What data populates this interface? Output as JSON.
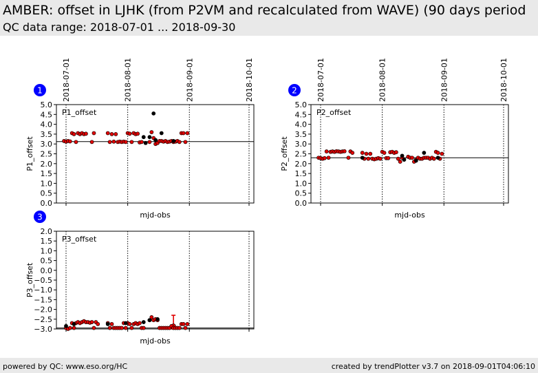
{
  "header": {
    "title": "AMBER: offset in LJHK (from P2VM and recalculated from WAVE) (90 days period",
    "subtitle": "QC data range: 2018-07-01 ... 2018-09-30"
  },
  "footer": {
    "left": "powered by QC: www.eso.org/HC",
    "right": "created by trendPlotter v3.7 on 2018-09-01T04:06:10"
  },
  "colors": {
    "marker_red": "#e00000",
    "marker_black": "#000000",
    "badge_blue": "#0000ff",
    "header_bg": "#e9e9e9"
  },
  "chart_data": [
    {
      "type": "scatter",
      "badge": "1",
      "panel_label": "P1_offset",
      "xlabel": "mjd-obs",
      "ylabel": "P1_offset",
      "date_ticks": [
        "2018-07-01",
        "2018-08-01",
        "2018-09-01",
        "2018-10-01"
      ],
      "ylim": [
        0.0,
        5.0
      ],
      "yticks": [
        "0.0",
        "0.5",
        "1.0",
        "1.5",
        "2.0",
        "2.5",
        "3.0",
        "3.5",
        "4.0",
        "4.5",
        "5.0"
      ],
      "reference_line": 3.12,
      "series": [
        {
          "color": "red",
          "points": [
            [
              "2018-06-30",
              3.15
            ],
            [
              "2018-07-01",
              3.12
            ],
            [
              "2018-07-02",
              3.15
            ],
            [
              "2018-07-03",
              3.13
            ],
            [
              "2018-07-04",
              3.55
            ],
            [
              "2018-07-05",
              3.5
            ],
            [
              "2018-07-06",
              3.1
            ],
            [
              "2018-07-07",
              3.55
            ],
            [
              "2018-07-08",
              3.5
            ],
            [
              "2018-07-09",
              3.55
            ],
            [
              "2018-07-10",
              3.5
            ],
            [
              "2018-07-11",
              3.52
            ],
            [
              "2018-07-14",
              3.1
            ],
            [
              "2018-07-15",
              3.55
            ],
            [
              "2018-07-22",
              3.55
            ],
            [
              "2018-07-23",
              3.1
            ],
            [
              "2018-07-24",
              3.5
            ],
            [
              "2018-07-25",
              3.12
            ],
            [
              "2018-07-26",
              3.5
            ],
            [
              "2018-07-27",
              3.1
            ],
            [
              "2018-07-28",
              3.12
            ],
            [
              "2018-07-29",
              3.1
            ],
            [
              "2018-07-30",
              3.12
            ],
            [
              "2018-07-31",
              3.1
            ],
            [
              "2018-08-01",
              3.55
            ],
            [
              "2018-08-02",
              3.52
            ],
            [
              "2018-08-03",
              3.1
            ],
            [
              "2018-08-04",
              3.55
            ],
            [
              "2018-08-05",
              3.5
            ],
            [
              "2018-08-06",
              3.52
            ],
            [
              "2018-08-07",
              3.08
            ],
            [
              "2018-08-08",
              3.1
            ],
            [
              "2018-08-12",
              3.1
            ],
            [
              "2018-08-13",
              3.6
            ],
            [
              "2018-08-14",
              3.3
            ],
            [
              "2018-08-15",
              3.0
            ],
            [
              "2018-08-16",
              3.05
            ],
            [
              "2018-08-17",
              3.15
            ],
            [
              "2018-08-18",
              3.15
            ],
            [
              "2018-08-19",
              3.12
            ],
            [
              "2018-08-20",
              3.15
            ],
            [
              "2018-08-21",
              3.1
            ],
            [
              "2018-08-22",
              3.12
            ],
            [
              "2018-08-23",
              3.15
            ],
            [
              "2018-08-24",
              3.1
            ],
            [
              "2018-08-25",
              3.12
            ],
            [
              "2018-08-26",
              3.15
            ],
            [
              "2018-08-27",
              3.1
            ],
            [
              "2018-08-28",
              3.55
            ],
            [
              "2018-08-29",
              3.55
            ],
            [
              "2018-08-30",
              3.1
            ],
            [
              "2018-08-31",
              3.55
            ]
          ]
        },
        {
          "color": "black",
          "points": [
            [
              "2018-08-09",
              3.35
            ],
            [
              "2018-08-10",
              3.05
            ],
            [
              "2018-08-12",
              3.35
            ],
            [
              "2018-08-14",
              4.55
            ],
            [
              "2018-08-15",
              3.2
            ],
            [
              "2018-08-18",
              3.55
            ],
            [
              "2018-08-24",
              3.15
            ]
          ]
        }
      ]
    },
    {
      "type": "scatter",
      "badge": "2",
      "panel_label": "P2_offset",
      "xlabel": "mjd-obs",
      "ylabel": "P2_offset",
      "date_ticks": [
        "2018-07-01",
        "2018-08-01",
        "2018-09-01",
        "2018-10-01"
      ],
      "ylim": [
        0.0,
        5.0
      ],
      "yticks": [
        "0.0",
        "0.5",
        "1.0",
        "1.5",
        "2.0",
        "2.5",
        "3.0",
        "3.5",
        "4.0",
        "4.5",
        "5.0"
      ],
      "reference_line": 2.3,
      "series": [
        {
          "color": "red",
          "points": [
            [
              "2018-06-30",
              2.3
            ],
            [
              "2018-07-01",
              2.28
            ],
            [
              "2018-07-02",
              2.25
            ],
            [
              "2018-07-03",
              2.28
            ],
            [
              "2018-07-04",
              2.62
            ],
            [
              "2018-07-05",
              2.3
            ],
            [
              "2018-07-06",
              2.6
            ],
            [
              "2018-07-07",
              2.62
            ],
            [
              "2018-07-08",
              2.6
            ],
            [
              "2018-07-09",
              2.63
            ],
            [
              "2018-07-10",
              2.62
            ],
            [
              "2018-07-11",
              2.6
            ],
            [
              "2018-07-12",
              2.62
            ],
            [
              "2018-07-13",
              2.63
            ],
            [
              "2018-07-15",
              2.3
            ],
            [
              "2018-07-16",
              2.62
            ],
            [
              "2018-07-17",
              2.55
            ],
            [
              "2018-07-22",
              2.55
            ],
            [
              "2018-07-23",
              2.25
            ],
            [
              "2018-07-24",
              2.5
            ],
            [
              "2018-07-25",
              2.25
            ],
            [
              "2018-07-26",
              2.5
            ],
            [
              "2018-07-27",
              2.25
            ],
            [
              "2018-07-28",
              2.22
            ],
            [
              "2018-07-29",
              2.25
            ],
            [
              "2018-07-30",
              2.28
            ],
            [
              "2018-07-31",
              2.25
            ],
            [
              "2018-08-01",
              2.6
            ],
            [
              "2018-08-02",
              2.55
            ],
            [
              "2018-08-03",
              2.28
            ],
            [
              "2018-08-04",
              2.28
            ],
            [
              "2018-08-05",
              2.58
            ],
            [
              "2018-08-06",
              2.6
            ],
            [
              "2018-08-07",
              2.55
            ],
            [
              "2018-08-08",
              2.58
            ],
            [
              "2018-08-09",
              2.25
            ],
            [
              "2018-08-10",
              2.1
            ],
            [
              "2018-08-11",
              2.3
            ],
            [
              "2018-08-14",
              2.35
            ],
            [
              "2018-08-15",
              2.3
            ],
            [
              "2018-08-16",
              2.3
            ],
            [
              "2018-08-17",
              2.1
            ],
            [
              "2018-08-18",
              2.2
            ],
            [
              "2018-08-19",
              2.3
            ],
            [
              "2018-08-20",
              2.25
            ],
            [
              "2018-08-21",
              2.25
            ],
            [
              "2018-08-22",
              2.3
            ],
            [
              "2018-08-23",
              2.3
            ],
            [
              "2018-08-24",
              2.3
            ],
            [
              "2018-08-25",
              2.25
            ],
            [
              "2018-08-26",
              2.3
            ],
            [
              "2018-08-27",
              2.25
            ],
            [
              "2018-08-28",
              2.6
            ],
            [
              "2018-08-29",
              2.55
            ],
            [
              "2018-08-30",
              2.25
            ],
            [
              "2018-08-31",
              2.5
            ]
          ]
        },
        {
          "color": "black",
          "points": [
            [
              "2018-07-22",
              2.3
            ],
            [
              "2018-08-11",
              2.4
            ],
            [
              "2018-08-12",
              2.2
            ],
            [
              "2018-08-18",
              2.15
            ],
            [
              "2018-08-22",
              2.55
            ],
            [
              "2018-08-29",
              2.3
            ]
          ]
        }
      ]
    },
    {
      "type": "scatter",
      "badge": "3",
      "panel_label": "P3_offset",
      "xlabel": "mjd-obs",
      "ylabel": "P3_offset",
      "date_ticks": [
        "2018-07-01",
        "2018-08-01",
        "2018-09-01",
        "2018-10-01"
      ],
      "ylim": [
        -3.0,
        2.0
      ],
      "yticks": [
        "2.0",
        "1.5",
        "1.0",
        "0.5",
        "0.0",
        "−0.5",
        "−1.0",
        "−1.5",
        "−2.0",
        "−2.5",
        "−3.0"
      ],
      "reference_line": -2.95,
      "series": [
        {
          "color": "red",
          "points": [
            [
              "2018-07-01",
              -2.95
            ],
            [
              "2018-07-02",
              -3.0
            ],
            [
              "2018-07-03",
              -2.95
            ],
            [
              "2018-07-04",
              -2.7
            ],
            [
              "2018-07-05",
              -2.95
            ],
            [
              "2018-07-06",
              -2.7
            ],
            [
              "2018-07-07",
              -2.65
            ],
            [
              "2018-07-08",
              -2.7
            ],
            [
              "2018-07-09",
              -2.65
            ],
            [
              "2018-07-10",
              -2.6
            ],
            [
              "2018-07-11",
              -2.65
            ],
            [
              "2018-07-12",
              -2.65
            ],
            [
              "2018-07-13",
              -2.68
            ],
            [
              "2018-07-14",
              -2.65
            ],
            [
              "2018-07-15",
              -2.95
            ],
            [
              "2018-07-16",
              -2.65
            ],
            [
              "2018-07-17",
              -2.75
            ],
            [
              "2018-07-22",
              -2.7
            ],
            [
              "2018-07-23",
              -2.95
            ],
            [
              "2018-07-24",
              -2.75
            ],
            [
              "2018-07-25",
              -2.95
            ],
            [
              "2018-07-26",
              -2.95
            ],
            [
              "2018-07-27",
              -2.95
            ],
            [
              "2018-07-28",
              -2.95
            ],
            [
              "2018-07-29",
              -2.95
            ],
            [
              "2018-07-30",
              -2.7
            ],
            [
              "2018-07-31",
              -2.95
            ],
            [
              "2018-08-01",
              -2.7
            ],
            [
              "2018-08-02",
              -2.75
            ],
            [
              "2018-08-03",
              -2.95
            ],
            [
              "2018-08-04",
              -2.75
            ],
            [
              "2018-08-05",
              -2.7
            ],
            [
              "2018-08-06",
              -2.75
            ],
            [
              "2018-08-07",
              -2.7
            ],
            [
              "2018-08-08",
              -2.95
            ],
            [
              "2018-08-09",
              -2.95
            ],
            [
              "2018-08-12",
              -2.55
            ],
            [
              "2018-08-13",
              -2.4
            ],
            [
              "2018-08-14",
              -2.55
            ],
            [
              "2018-08-15",
              -2.5
            ],
            [
              "2018-08-16",
              -2.55
            ],
            [
              "2018-08-17",
              -2.95
            ],
            [
              "2018-08-18",
              -2.95
            ],
            [
              "2018-08-19",
              -2.95
            ],
            [
              "2018-08-20",
              -2.95
            ],
            [
              "2018-08-21",
              -2.95
            ],
            [
              "2018-08-22",
              -2.95
            ],
            [
              "2018-08-23",
              -2.85
            ],
            [
              "2018-08-24",
              -2.95
            ],
            [
              "2018-08-25",
              -2.95
            ],
            [
              "2018-08-26",
              -2.95
            ],
            [
              "2018-08-27",
              -2.95
            ],
            [
              "2018-08-28",
              -2.75
            ],
            [
              "2018-08-29",
              -2.75
            ],
            [
              "2018-08-30",
              -2.95
            ],
            [
              "2018-08-31",
              -2.75
            ]
          ]
        },
        {
          "color": "black",
          "points": [
            [
              "2018-07-01",
              -2.85
            ],
            [
              "2018-07-05",
              -2.75
            ],
            [
              "2018-07-22",
              -2.75
            ],
            [
              "2018-07-31",
              -2.7
            ],
            [
              "2018-08-09",
              -2.65
            ],
            [
              "2018-08-12",
              -2.55
            ],
            [
              "2018-08-16",
              -2.5
            ]
          ]
        }
      ],
      "error_bars": [
        {
          "x": "2018-08-24",
          "y": -2.85,
          "low": -3.0,
          "high": -2.3
        }
      ]
    }
  ]
}
